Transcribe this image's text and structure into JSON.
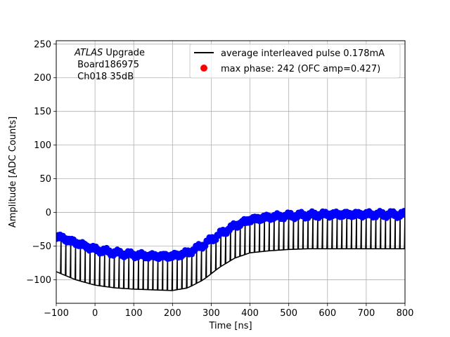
{
  "chart_data": {
    "type": "line",
    "xlabel": "Time [ns]",
    "ylabel": "Amplitude [ADC Counts]",
    "xlim": [
      -100,
      800
    ],
    "ylim": [
      -135,
      255
    ],
    "xticks": [
      -100,
      0,
      100,
      200,
      300,
      400,
      500,
      600,
      700,
      800
    ],
    "yticks": [
      -100,
      -50,
      0,
      50,
      100,
      150,
      200,
      250
    ],
    "xtick_labels": [
      "−100",
      "0",
      "100",
      "200",
      "300",
      "400",
      "500",
      "600",
      "700",
      "800"
    ],
    "ytick_labels": [
      "−100",
      "−50",
      "0",
      "50",
      "100",
      "150",
      "200",
      "250"
    ],
    "grid": true,
    "legend_position": "top-right",
    "annotation": {
      "italic": "ATLAS",
      "line1_rest": " Upgrade",
      "line2": " Board186975",
      "line3": " Ch018 35dB"
    },
    "series": [
      {
        "name": "average interleaved pulse 0.178mA",
        "kind": "line",
        "color": "#000000",
        "upper_envelope": {
          "x": [
            -100,
            -50,
            0,
            50,
            100,
            150,
            200,
            240,
            280,
            320,
            360,
            400,
            450,
            500,
            550,
            600,
            650,
            700,
            750,
            800
          ],
          "y": [
            -30,
            -42,
            -52,
            -58,
            -60,
            -62,
            -63,
            -58,
            -45,
            -30,
            -17,
            -8,
            -4,
            -2,
            -1,
            0,
            0,
            0,
            0,
            0
          ]
        },
        "lower_envelope": {
          "x": [
            -100,
            -50,
            0,
            50,
            100,
            150,
            200,
            240,
            280,
            320,
            360,
            400,
            450,
            500,
            550,
            600,
            650,
            700,
            750,
            800
          ],
          "y": [
            -88,
            -100,
            -108,
            -112,
            -114,
            -115,
            -116,
            -112,
            -100,
            -82,
            -68,
            -60,
            -57,
            -55,
            -54,
            -54,
            -54,
            -54,
            -54,
            -54
          ]
        },
        "spike_period_ns": 12.5
      },
      {
        "name": "max phase: 242 (OFC amp=0.427)",
        "kind": "scatter",
        "color": "#0000ff",
        "x": [
          -100,
          -50,
          0,
          50,
          100,
          150,
          200,
          240,
          280,
          320,
          360,
          400,
          450,
          500,
          550,
          600,
          650,
          700,
          750,
          800
        ],
        "y": [
          -35,
          -45,
          -55,
          -60,
          -63,
          -65,
          -65,
          -60,
          -48,
          -33,
          -20,
          -11,
          -7,
          -5,
          -4,
          -3,
          -3,
          -3,
          -3,
          -3
        ]
      }
    ]
  },
  "legend_marker_color": "#ff0000"
}
